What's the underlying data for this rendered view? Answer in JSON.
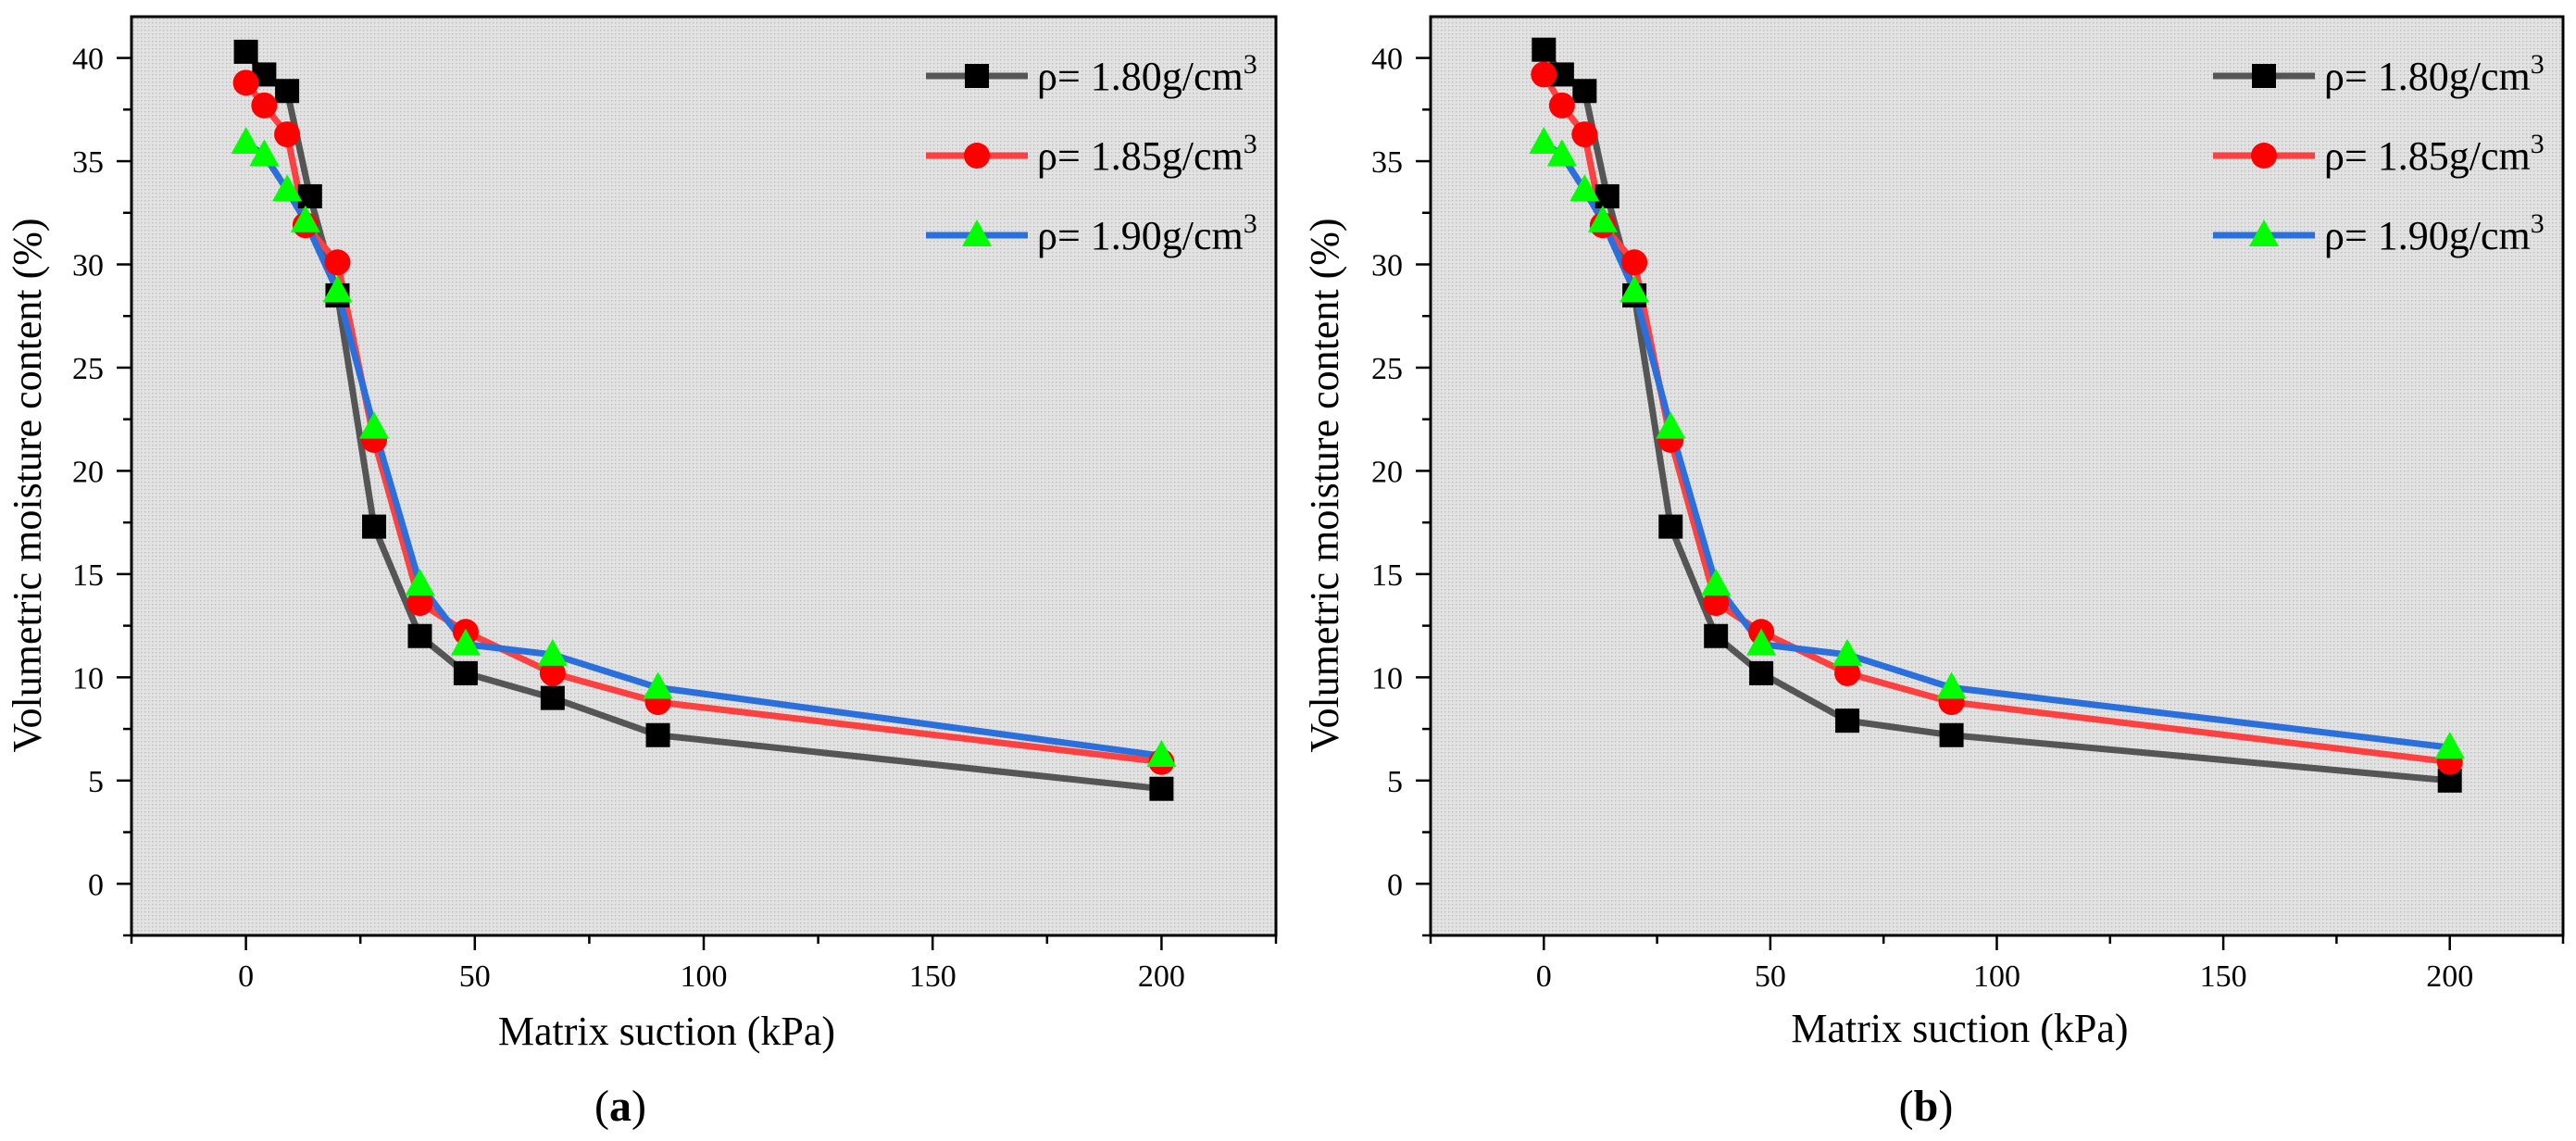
{
  "chart_data": [
    {
      "type": "line",
      "panel_label": "a",
      "xlabel": "Matrix suction (kPa)",
      "ylabel": "Volumetric moisture content (%)",
      "xlim": [
        -25,
        225
      ],
      "ylim": [
        -2.5,
        42
      ],
      "xticks": [
        0,
        50,
        100,
        150,
        200
      ],
      "yticks": [
        0,
        5,
        10,
        15,
        20,
        25,
        30,
        35,
        40
      ],
      "legend_position": "top-right",
      "series": [
        {
          "name": "ρ= 1.80g/cm",
          "superscript": "3",
          "color": "#555555",
          "marker": "square",
          "marker_color": "#000000",
          "x": [
            0,
            4,
            9,
            14,
            20,
            28,
            38,
            48,
            67,
            90,
            200
          ],
          "y": [
            40.3,
            39.2,
            38.4,
            33.3,
            28.5,
            17.3,
            12.0,
            10.2,
            9.0,
            7.2,
            4.6
          ]
        },
        {
          "name": "ρ= 1.85g/cm",
          "superscript": "3",
          "color": "#ff4040",
          "marker": "circle",
          "marker_color": "#ff0000",
          "x": [
            0,
            4,
            9,
            13,
            20,
            28,
            38,
            48,
            67,
            90,
            200
          ],
          "y": [
            38.8,
            37.7,
            36.3,
            31.9,
            30.1,
            21.5,
            13.6,
            12.2,
            10.2,
            8.8,
            5.9
          ]
        },
        {
          "name": "ρ= 1.90g/cm",
          "superscript": "3",
          "color": "#2a6fdb",
          "marker": "triangle",
          "marker_color": "#00ff00",
          "x": [
            0,
            4,
            9,
            13,
            20,
            28,
            38,
            48,
            67,
            90,
            200
          ],
          "y": [
            35.9,
            35.3,
            33.6,
            32.1,
            28.7,
            22.1,
            14.5,
            11.6,
            11.1,
            9.5,
            6.2
          ]
        }
      ]
    },
    {
      "type": "line",
      "panel_label": "b",
      "xlabel": "Matrix suction (kPa)",
      "ylabel": "Volumetric moisture content (%)",
      "xlim": [
        -25,
        225
      ],
      "ylim": [
        -2.5,
        42
      ],
      "xticks": [
        0,
        50,
        100,
        150,
        200
      ],
      "yticks": [
        0,
        5,
        10,
        15,
        20,
        25,
        30,
        35,
        40
      ],
      "legend_position": "top-right",
      "series": [
        {
          "name": "ρ= 1.80g/cm",
          "superscript": "3",
          "color": "#555555",
          "marker": "square",
          "marker_color": "#000000",
          "x": [
            0,
            4,
            9,
            14,
            20,
            28,
            38,
            48,
            67,
            90,
            200
          ],
          "y": [
            40.4,
            39.2,
            38.4,
            33.3,
            28.5,
            17.3,
            12.0,
            10.2,
            7.9,
            7.2,
            5.0
          ]
        },
        {
          "name": "ρ= 1.85g/cm",
          "superscript": "3",
          "color": "#ff4040",
          "marker": "circle",
          "marker_color": "#ff0000",
          "x": [
            0,
            4,
            9,
            13,
            20,
            28,
            38,
            48,
            67,
            90,
            200
          ],
          "y": [
            39.2,
            37.7,
            36.3,
            31.9,
            30.1,
            21.5,
            13.6,
            12.2,
            10.2,
            8.8,
            5.9
          ]
        },
        {
          "name": "ρ= 1.90g/cm",
          "superscript": "3",
          "color": "#2a6fdb",
          "marker": "triangle",
          "marker_color": "#00ff00",
          "x": [
            0,
            4,
            9,
            13,
            20,
            28,
            38,
            48,
            67,
            90,
            200
          ],
          "y": [
            35.9,
            35.3,
            33.6,
            32.1,
            28.7,
            22.1,
            14.5,
            11.6,
            11.1,
            9.5,
            6.6
          ]
        }
      ]
    }
  ]
}
